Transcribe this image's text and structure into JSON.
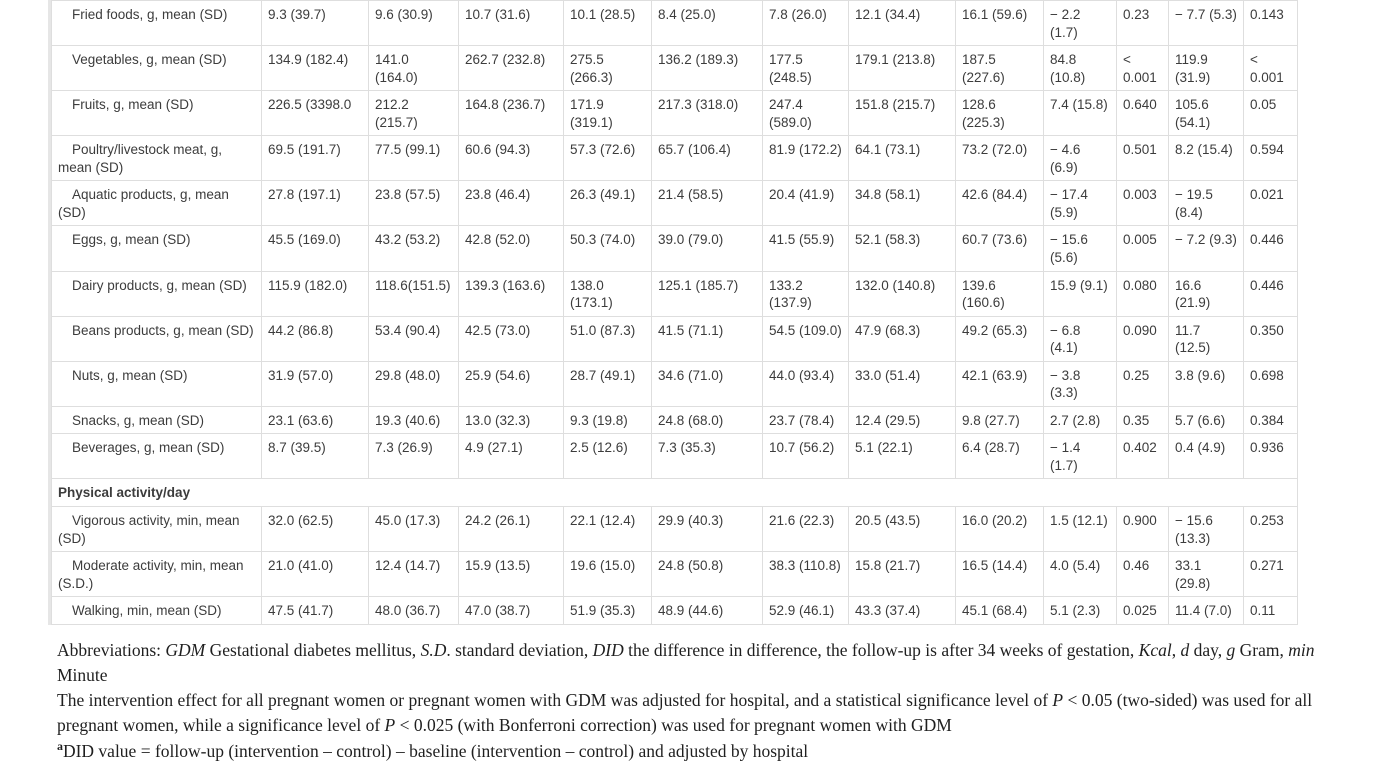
{
  "table": {
    "rows": [
      {
        "label": "Fried foods, g, mean (SD)",
        "cells": [
          "9.3 (39.7)",
          "9.6 (30.9)",
          "10.7 (31.6)",
          "10.1 (28.5)",
          "8.4 (25.0)",
          "7.8 (26.0)",
          "12.1 (34.4)",
          "16.1 (59.6)",
          "− 2.2 (1.7)",
          "0.23",
          "− 7.7 (5.3)",
          "0.143"
        ]
      },
      {
        "label": "Vegetables, g, mean (SD)",
        "cells": [
          "134.9 (182.4)",
          "141.0 (164.0)",
          "262.7 (232.8)",
          "275.5 (266.3)",
          "136.2 (189.3)",
          "177.5 (248.5)",
          "179.1 (213.8)",
          "187.5 (227.6)",
          "84.8 (10.8)",
          "< 0.001",
          "119.9 (31.9)",
          "< 0.001"
        ]
      },
      {
        "label": "Fruits, g, mean (SD)",
        "cells": [
          "226.5 (3398.0",
          "212.2 (215.7)",
          "164.8 (236.7)",
          "171.9 (319.1)",
          "217.3 (318.0)",
          "247.4 (589.0)",
          "151.8 (215.7)",
          "128.6 (225.3)",
          "7.4 (15.8)",
          "0.640",
          "105.6 (54.1)",
          "0.05"
        ]
      },
      {
        "label": "Poultry/livestock meat, g, mean (SD)",
        "cells": [
          "69.5 (191.7)",
          "77.5 (99.1)",
          "60.6 (94.3)",
          "57.3 (72.6)",
          "65.7 (106.4)",
          "81.9 (172.2)",
          "64.1 (73.1)",
          "73.2 (72.0)",
          "− 4.6 (6.9)",
          "0.501",
          "8.2 (15.4)",
          "0.594"
        ]
      },
      {
        "label": "Aquatic products, g, mean (SD)",
        "cells": [
          "27.8 (197.1)",
          "23.8 (57.5)",
          "23.8 (46.4)",
          "26.3 (49.1)",
          "21.4 (58.5)",
          "20.4 (41.9)",
          "34.8 (58.1)",
          "42.6 (84.4)",
          "− 17.4 (5.9)",
          "0.003",
          "− 19.5 (8.4)",
          "0.021"
        ]
      },
      {
        "label": "Eggs, g, mean (SD)",
        "cells": [
          "45.5 (169.0)",
          "43.2 (53.2)",
          "42.8 (52.0)",
          "50.3 (74.0)",
          "39.0 (79.0)",
          "41.5 (55.9)",
          "52.1 (58.3)",
          "60.7 (73.6)",
          "− 15.6 (5.6)",
          "0.005",
          "− 7.2 (9.3)",
          "0.446"
        ]
      },
      {
        "label": "Dairy products, g, mean (SD)",
        "cells": [
          "115.9 (182.0)",
          "118.6(151.5)",
          "139.3 (163.6)",
          "138.0 (173.1)",
          "125.1 (185.7)",
          "133.2 (137.9)",
          "132.0 (140.8)",
          "139.6 (160.6)",
          "15.9 (9.1)",
          "0.080",
          "16.6 (21.9)",
          "0.446"
        ]
      },
      {
        "label": "Beans products, g, mean (SD)",
        "cells": [
          "44.2 (86.8)",
          "53.4 (90.4)",
          "42.5 (73.0)",
          "51.0 (87.3)",
          "41.5 (71.1)",
          "54.5 (109.0)",
          "47.9 (68.3)",
          "49.2 (65.3)",
          "− 6.8 (4.1)",
          "0.090",
          "11.7 (12.5)",
          "0.350"
        ]
      },
      {
        "label": "Nuts, g, mean (SD)",
        "cells": [
          "31.9 (57.0)",
          "29.8 (48.0)",
          "25.9 (54.6)",
          "28.7 (49.1)",
          "34.6 (71.0)",
          "44.0 (93.4)",
          "33.0 (51.4)",
          "42.1 (63.9)",
          "− 3.8 (3.3)",
          "0.25",
          "3.8 (9.6)",
          "0.698"
        ]
      },
      {
        "label": "Snacks, g, mean (SD)",
        "cells": [
          "23.1 (63.6)",
          "19.3 (40.6)",
          "13.0 (32.3)",
          "9.3 (19.8)",
          "24.8 (68.0)",
          "23.7 (78.4)",
          "12.4 (29.5)",
          "9.8 (27.7)",
          "2.7 (2.8)",
          "0.35",
          "5.7 (6.6)",
          "0.384"
        ]
      },
      {
        "label": "Beverages, g, mean (SD)",
        "cells": [
          "8.7 (39.5)",
          "7.3 (26.9)",
          "4.9 (27.1)",
          "2.5 (12.6)",
          "7.3 (35.3)",
          "10.7 (56.2)",
          "5.1 (22.1)",
          "6.4 (28.7)",
          "− 1.4 (1.7)",
          "0.402",
          "0.4 (4.9)",
          "0.936"
        ]
      },
      {
        "section": "Physical activity/day"
      },
      {
        "label": "Vigorous activity, min, mean (SD)",
        "cells": [
          "32.0 (62.5)",
          "45.0 (17.3)",
          "24.2 (26.1)",
          "22.1 (12.4)",
          "29.9 (40.3)",
          "21.6 (22.3)",
          "20.5 (43.5)",
          "16.0 (20.2)",
          "1.5 (12.1)",
          "0.900",
          "− 15.6 (13.3)",
          "0.253"
        ]
      },
      {
        "label": "Moderate activity, min, mean (S.D.)",
        "cells": [
          "21.0 (41.0)",
          "12.4 (14.7)",
          "15.9 (13.5)",
          "19.6 (15.0)",
          "24.8 (50.8)",
          "38.3 (110.8)",
          "15.8 (21.7)",
          "16.5 (14.4)",
          "4.0 (5.4)",
          "0.46",
          "33.1 (29.8)",
          "0.271"
        ]
      },
      {
        "label": "Walking, min, mean (SD)",
        "cells": [
          "47.5 (41.7)",
          "48.0 (36.7)",
          "47.0 (38.7)",
          "51.9 (35.3)",
          "48.9 (44.6)",
          "52.9 (46.1)",
          "43.3 (37.4)",
          "45.1 (68.4)",
          "5.1 (2.3)",
          "0.025",
          "11.4 (7.0)",
          "0.11"
        ]
      }
    ]
  },
  "footnotes": {
    "paragraphs": [
      [
        {
          "t": "Abbreviations: "
        },
        {
          "t": "GDM",
          "s": "i"
        },
        {
          "t": " Gestational diabetes mellitus, "
        },
        {
          "t": "S.D",
          "s": "i"
        },
        {
          "t": ". standard deviation, "
        },
        {
          "t": "DID",
          "s": "i"
        },
        {
          "t": " the difference in difference, the follow-up is after 34 weeks of gestation, "
        },
        {
          "t": "Kcal",
          "s": "i"
        },
        {
          "t": ", "
        },
        {
          "t": "d",
          "s": "i"
        },
        {
          "t": " day, "
        },
        {
          "t": "g",
          "s": "i"
        },
        {
          "t": " Gram, "
        },
        {
          "t": "min",
          "s": "i"
        },
        {
          "t": " Minute"
        }
      ],
      [
        {
          "t": "The intervention effect for all pregnant women or pregnant women with GDM was adjusted for hospital, and a statistical significance level of "
        },
        {
          "t": "P",
          "s": "i"
        },
        {
          "t": " < 0.05 (two-sided) was used for all pregnant women, while a significance level of "
        },
        {
          "t": "P",
          "s": "i"
        },
        {
          "t": " < 0.025 (with Bonferroni correction) was used for pregnant women with GDM"
        }
      ],
      [
        {
          "t": "a",
          "s": "sup"
        },
        {
          "t": "DID value = follow-up (intervention – control) – baseline (intervention – control) and adjusted by hospital"
        }
      ]
    ]
  }
}
